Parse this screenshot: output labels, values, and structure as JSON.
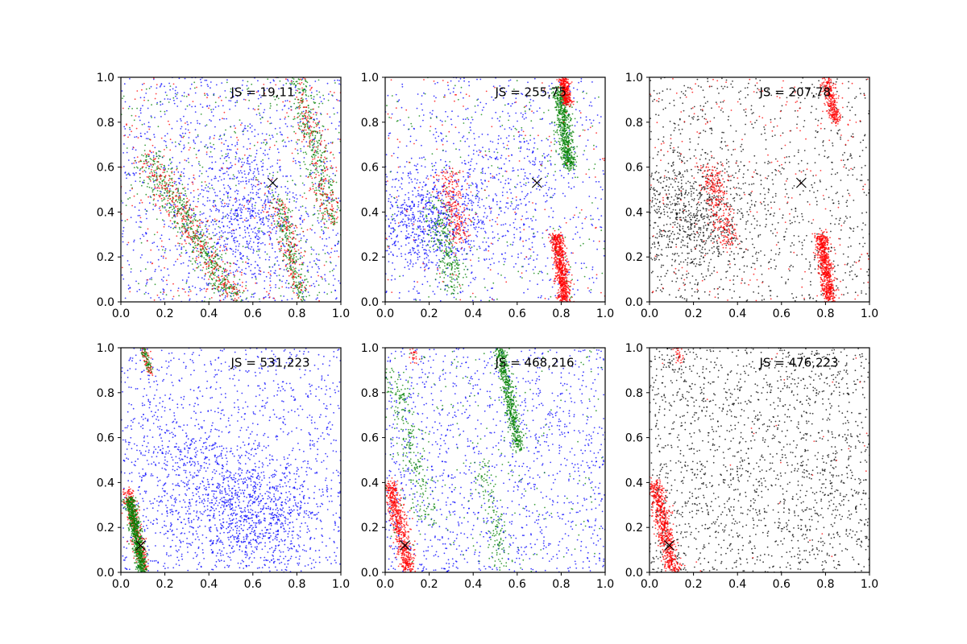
{
  "chart_data": [
    {
      "type": "scatter",
      "annotation": "JS = 19,11",
      "xlim": [
        0,
        1
      ],
      "ylim": [
        0,
        1
      ],
      "xticks": [
        "0.0",
        "0.2",
        "0.4",
        "0.6",
        "0.8",
        "1.0"
      ],
      "yticks": [
        "0.0",
        "0.2",
        "0.4",
        "0.6",
        "0.8",
        "1.0"
      ],
      "marker": [
        0.69,
        0.53
      ],
      "colors": {
        "blue": "#0000ff",
        "green": "#008000",
        "red": "#ff0000"
      },
      "clusters": [
        {
          "color": "blue",
          "shape": "uniform",
          "n": 1100
        },
        {
          "color": "blue",
          "shape": "blob",
          "cx": 0.55,
          "cy": 0.38,
          "sx": 0.12,
          "sy": 0.15,
          "n": 500
        },
        {
          "color": "green",
          "shape": "band",
          "x0": 0.52,
          "y0": 0.0,
          "x1": 0.12,
          "y1": 0.65,
          "w": 0.035,
          "n": 550
        },
        {
          "color": "red",
          "shape": "band",
          "x0": 0.52,
          "y0": 0.0,
          "x1": 0.12,
          "y1": 0.65,
          "w": 0.04,
          "n": 350
        },
        {
          "color": "green",
          "shape": "band",
          "x0": 0.82,
          "y0": 0.0,
          "x1": 0.72,
          "y1": 0.45,
          "w": 0.02,
          "n": 250
        },
        {
          "color": "red",
          "shape": "band",
          "x0": 0.82,
          "y0": 0.0,
          "x1": 0.72,
          "y1": 0.45,
          "w": 0.025,
          "n": 150
        },
        {
          "color": "green",
          "shape": "band",
          "x0": 0.96,
          "y0": 0.35,
          "x1": 0.8,
          "y1": 1.0,
          "w": 0.03,
          "n": 350
        },
        {
          "color": "red",
          "shape": "band",
          "x0": 0.96,
          "y0": 0.35,
          "x1": 0.8,
          "y1": 1.0,
          "w": 0.03,
          "n": 200
        },
        {
          "color": "green",
          "shape": "uniform",
          "n": 350
        },
        {
          "color": "red",
          "shape": "uniform",
          "n": 250
        }
      ]
    },
    {
      "type": "scatter",
      "annotation": "JS = 255,75",
      "xlim": [
        0,
        1
      ],
      "ylim": [
        0,
        1
      ],
      "xticks": [
        "0.0",
        "0.2",
        "0.4",
        "0.6",
        "0.8",
        "1.0"
      ],
      "yticks": [
        "0.0",
        "0.2",
        "0.4",
        "0.6",
        "0.8",
        "1.0"
      ],
      "marker": [
        0.69,
        0.53
      ],
      "colors": {
        "blue": "#0000ff",
        "green": "#008000",
        "red": "#ff0000"
      },
      "clusters": [
        {
          "color": "blue",
          "shape": "blob",
          "cx": 0.18,
          "cy": 0.36,
          "sx": 0.13,
          "sy": 0.12,
          "n": 700
        },
        {
          "color": "blue",
          "shape": "blob",
          "cx": 0.55,
          "cy": 0.5,
          "sx": 0.15,
          "sy": 0.2,
          "n": 350
        },
        {
          "color": "blue",
          "shape": "uniform",
          "n": 600
        },
        {
          "color": "green",
          "shape": "band",
          "x0": 0.84,
          "y0": 0.6,
          "x1": 0.79,
          "y1": 0.95,
          "w": 0.018,
          "n": 650
        },
        {
          "color": "red",
          "shape": "band",
          "x0": 0.83,
          "y0": 0.88,
          "x1": 0.81,
          "y1": 1.0,
          "w": 0.012,
          "n": 300
        },
        {
          "color": "red",
          "shape": "band",
          "x0": 0.82,
          "y0": 0.0,
          "x1": 0.78,
          "y1": 0.3,
          "w": 0.015,
          "n": 750
        },
        {
          "color": "red",
          "shape": "band",
          "x0": 0.35,
          "y0": 0.25,
          "x1": 0.28,
          "y1": 0.58,
          "w": 0.03,
          "n": 250
        },
        {
          "color": "green",
          "shape": "band",
          "x0": 0.32,
          "y0": 0.05,
          "x1": 0.22,
          "y1": 0.45,
          "w": 0.03,
          "n": 250
        },
        {
          "color": "green",
          "shape": "uniform",
          "n": 200
        },
        {
          "color": "red",
          "shape": "uniform",
          "n": 150
        }
      ]
    },
    {
      "type": "scatter",
      "annotation": "JS = 207,78",
      "xlim": [
        0,
        1
      ],
      "ylim": [
        0,
        1
      ],
      "xticks": [
        "0.0",
        "0.2",
        "0.4",
        "0.6",
        "0.8",
        "1.0"
      ],
      "yticks": [
        "0.0",
        "0.2",
        "0.4",
        "0.6",
        "0.8",
        "1.0"
      ],
      "marker": [
        0.69,
        0.53
      ],
      "colors": {
        "black": "#000000",
        "red": "#ff0000"
      },
      "clusters": [
        {
          "color": "black",
          "shape": "blob",
          "cx": 0.18,
          "cy": 0.38,
          "sx": 0.14,
          "sy": 0.14,
          "n": 800
        },
        {
          "color": "black",
          "shape": "uniform",
          "n": 900
        },
        {
          "color": "red",
          "shape": "band",
          "x0": 0.82,
          "y0": 0.0,
          "x1": 0.78,
          "y1": 0.3,
          "w": 0.015,
          "n": 700
        },
        {
          "color": "red",
          "shape": "band",
          "x0": 0.85,
          "y0": 0.8,
          "x1": 0.8,
          "y1": 1.0,
          "w": 0.014,
          "n": 300
        },
        {
          "color": "red",
          "shape": "band",
          "x0": 0.36,
          "y0": 0.25,
          "x1": 0.27,
          "y1": 0.6,
          "w": 0.03,
          "n": 300
        },
        {
          "color": "red",
          "shape": "uniform",
          "n": 250
        }
      ]
    },
    {
      "type": "scatter",
      "annotation": "JS = 531,223",
      "xlim": [
        0,
        1
      ],
      "ylim": [
        0,
        1
      ],
      "xticks": [
        "0.0",
        "0.2",
        "0.4",
        "0.6",
        "0.8",
        "1.0"
      ],
      "yticks": [
        "0.0",
        "0.2",
        "0.4",
        "0.6",
        "0.8",
        "1.0"
      ],
      "marker": [
        0.09,
        0.12
      ],
      "colors": {
        "blue": "#0000ff",
        "green": "#008000",
        "red": "#ff0000"
      },
      "clusters": [
        {
          "color": "blue",
          "shape": "uniform",
          "n": 1200
        },
        {
          "color": "blue",
          "shape": "blob",
          "cx": 0.6,
          "cy": 0.25,
          "sx": 0.15,
          "sy": 0.12,
          "n": 800
        },
        {
          "color": "blue",
          "shape": "blob",
          "cx": 0.3,
          "cy": 0.45,
          "sx": 0.15,
          "sy": 0.15,
          "n": 400
        },
        {
          "color": "red",
          "shape": "band",
          "x0": 0.11,
          "y0": 0.0,
          "x1": 0.03,
          "y1": 0.37,
          "w": 0.015,
          "n": 350
        },
        {
          "color": "green",
          "shape": "band",
          "x0": 0.1,
          "y0": 0.0,
          "x1": 0.04,
          "y1": 0.33,
          "w": 0.012,
          "n": 700
        },
        {
          "color": "red",
          "shape": "band",
          "x0": 0.14,
          "y0": 0.88,
          "x1": 0.1,
          "y1": 1.0,
          "w": 0.01,
          "n": 60
        },
        {
          "color": "green",
          "shape": "band",
          "x0": 0.13,
          "y0": 0.9,
          "x1": 0.1,
          "y1": 1.0,
          "w": 0.008,
          "n": 60
        }
      ]
    },
    {
      "type": "scatter",
      "annotation": "JS = 468,216",
      "xlim": [
        0,
        1
      ],
      "ylim": [
        0,
        1
      ],
      "xticks": [
        "0.0",
        "0.2",
        "0.4",
        "0.6",
        "0.8",
        "1.0"
      ],
      "yticks": [
        "0.0",
        "0.2",
        "0.4",
        "0.6",
        "0.8",
        "1.0"
      ],
      "marker": [
        0.09,
        0.12
      ],
      "colors": {
        "blue": "#0000ff",
        "green": "#008000",
        "red": "#ff0000"
      },
      "clusters": [
        {
          "color": "blue",
          "shape": "uniform",
          "n": 1300
        },
        {
          "color": "green",
          "shape": "band",
          "x0": 0.61,
          "y0": 0.55,
          "x1": 0.52,
          "y1": 1.0,
          "w": 0.014,
          "n": 550
        },
        {
          "color": "red",
          "shape": "band",
          "x0": 0.11,
          "y0": 0.0,
          "x1": 0.02,
          "y1": 0.4,
          "w": 0.018,
          "n": 650
        },
        {
          "color": "green",
          "shape": "band",
          "x0": 0.2,
          "y0": 0.2,
          "x1": 0.03,
          "y1": 0.9,
          "w": 0.03,
          "n": 250
        },
        {
          "color": "green",
          "shape": "band",
          "x0": 0.54,
          "y0": 0.0,
          "x1": 0.44,
          "y1": 0.5,
          "w": 0.025,
          "n": 150
        },
        {
          "color": "green",
          "shape": "uniform",
          "n": 200
        },
        {
          "color": "red",
          "shape": "band",
          "x0": 0.14,
          "y0": 0.93,
          "x1": 0.12,
          "y1": 1.0,
          "w": 0.01,
          "n": 25
        }
      ]
    },
    {
      "type": "scatter",
      "annotation": "JS = 476,223",
      "xlim": [
        0,
        1
      ],
      "ylim": [
        0,
        1
      ],
      "xticks": [
        "0.0",
        "0.2",
        "0.4",
        "0.6",
        "0.8",
        "1.0"
      ],
      "yticks": [
        "0.0",
        "0.2",
        "0.4",
        "0.6",
        "0.8",
        "1.0"
      ],
      "marker": [
        0.09,
        0.12
      ],
      "colors": {
        "black": "#000000",
        "red": "#ff0000"
      },
      "clusters": [
        {
          "color": "black",
          "shape": "uniform",
          "n": 1800
        },
        {
          "color": "red",
          "shape": "band",
          "x0": 0.11,
          "y0": 0.0,
          "x1": 0.02,
          "y1": 0.4,
          "w": 0.018,
          "n": 700
        },
        {
          "color": "red",
          "shape": "band",
          "x0": 0.14,
          "y0": 0.93,
          "x1": 0.12,
          "y1": 1.0,
          "w": 0.01,
          "n": 30
        },
        {
          "color": "red",
          "shape": "uniform",
          "n": 30
        }
      ]
    }
  ]
}
